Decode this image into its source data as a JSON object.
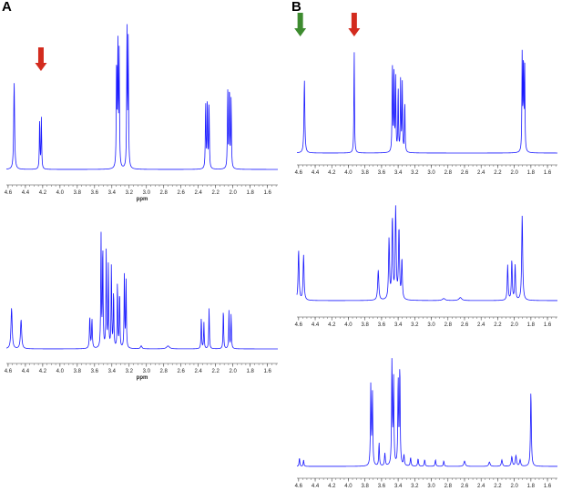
{
  "figure": {
    "panels": [
      {
        "letter": "A"
      },
      {
        "letter": "B"
      }
    ],
    "spectrum_color": "#1a1aff",
    "axis_color": "#444444",
    "arrows": [
      {
        "panel": "A",
        "x": 4.22,
        "color": "#d32b1e",
        "name": "red-arrow-icon"
      },
      {
        "panel": "B",
        "x": 4.58,
        "color": "#3d8b2f",
        "name": "green-arrow-icon"
      },
      {
        "panel": "B",
        "x": 3.93,
        "color": "#d32b1e",
        "name": "red-arrow-icon"
      }
    ]
  },
  "chart_data": [
    {
      "type": "line",
      "panel": "A",
      "xlabel": "ppm",
      "xlim": [
        4.62,
        1.48
      ],
      "ylim": [
        0,
        1
      ],
      "reversed_x": true,
      "ticks": [
        "4.6",
        "4.4",
        "4.2",
        "4.0",
        "3.8",
        "3.6",
        "3.4",
        "3.2",
        "3.0",
        "2.8",
        "2.6",
        "2.4",
        "2.2",
        "2.0",
        "1.8",
        "1.6"
      ],
      "peaks": [
        {
          "x": 4.53,
          "h": 0.62,
          "w": 0.006
        },
        {
          "x": 4.235,
          "h": 0.36,
          "w": 0.004
        },
        {
          "x": 4.215,
          "h": 0.36,
          "w": 0.004
        },
        {
          "x": 3.345,
          "h": 0.78,
          "w": 0.004
        },
        {
          "x": 3.33,
          "h": 0.88,
          "w": 0.004
        },
        {
          "x": 3.315,
          "h": 0.8,
          "w": 0.004
        },
        {
          "x": 3.225,
          "h": 0.98,
          "w": 0.004
        },
        {
          "x": 3.21,
          "h": 0.9,
          "w": 0.004
        },
        {
          "x": 2.315,
          "h": 0.48,
          "w": 0.004
        },
        {
          "x": 2.295,
          "h": 0.5,
          "w": 0.004
        },
        {
          "x": 2.275,
          "h": 0.44,
          "w": 0.004
        },
        {
          "x": 2.06,
          "h": 0.56,
          "w": 0.004
        },
        {
          "x": 2.04,
          "h": 0.6,
          "w": 0.004
        },
        {
          "x": 2.02,
          "h": 0.5,
          "w": 0.004
        }
      ]
    },
    {
      "type": "line",
      "panel": "A",
      "xlabel": "ppm",
      "xlim": [
        4.62,
        1.48
      ],
      "ylim": [
        0,
        1
      ],
      "reversed_x": true,
      "ticks": [
        "4.6",
        "4.4",
        "4.2",
        "4.0",
        "3.8",
        "3.6",
        "3.4",
        "3.2",
        "3.0",
        "2.8",
        "2.6",
        "2.4",
        "2.2",
        "2.0",
        "1.8",
        "1.6"
      ],
      "peaks": [
        {
          "x": 4.56,
          "h": 0.28,
          "w": 0.008
        },
        {
          "x": 4.45,
          "h": 0.2,
          "w": 0.008
        },
        {
          "x": 3.655,
          "h": 0.22,
          "w": 0.005
        },
        {
          "x": 3.63,
          "h": 0.2,
          "w": 0.005
        },
        {
          "x": 3.525,
          "h": 0.78,
          "w": 0.004
        },
        {
          "x": 3.505,
          "h": 0.72,
          "w": 0.004
        },
        {
          "x": 3.465,
          "h": 0.66,
          "w": 0.004
        },
        {
          "x": 3.44,
          "h": 0.58,
          "w": 0.004
        },
        {
          "x": 3.405,
          "h": 0.58,
          "w": 0.004
        },
        {
          "x": 3.38,
          "h": 0.4,
          "w": 0.004
        },
        {
          "x": 3.335,
          "h": 0.46,
          "w": 0.004
        },
        {
          "x": 3.31,
          "h": 0.4,
          "w": 0.004
        },
        {
          "x": 3.255,
          "h": 0.52,
          "w": 0.004
        },
        {
          "x": 3.235,
          "h": 0.46,
          "w": 0.004
        },
        {
          "x": 3.06,
          "h": 0.02,
          "w": 0.01
        },
        {
          "x": 2.75,
          "h": 0.02,
          "w": 0.02
        },
        {
          "x": 2.365,
          "h": 0.22,
          "w": 0.004
        },
        {
          "x": 2.335,
          "h": 0.18,
          "w": 0.004
        },
        {
          "x": 2.275,
          "h": 0.28,
          "w": 0.004
        },
        {
          "x": 2.11,
          "h": 0.28,
          "w": 0.004
        },
        {
          "x": 2.045,
          "h": 0.26,
          "w": 0.004
        },
        {
          "x": 2.02,
          "h": 0.24,
          "w": 0.004
        }
      ]
    },
    {
      "type": "line",
      "panel": "B",
      "xlabel": "",
      "xlim": [
        4.62,
        1.48
      ],
      "ylim": [
        0,
        1
      ],
      "reversed_x": true,
      "ticks": [
        "4.6",
        "4.4",
        "4.2",
        "4.0",
        "3.8",
        "3.6",
        "3.4",
        "3.2",
        "3.0",
        "2.8",
        "2.6",
        "2.4",
        "2.2",
        "2.0",
        "1.8",
        "1.6"
      ],
      "peaks": [
        {
          "x": 4.53,
          "h": 0.7,
          "w": 0.006
        },
        {
          "x": 3.93,
          "h": 1.0,
          "w": 0.004
        },
        {
          "x": 3.47,
          "h": 0.88,
          "w": 0.004
        },
        {
          "x": 3.45,
          "h": 0.8,
          "w": 0.004
        },
        {
          "x": 3.43,
          "h": 0.7,
          "w": 0.004
        },
        {
          "x": 3.4,
          "h": 0.62,
          "w": 0.004
        },
        {
          "x": 3.37,
          "h": 0.72,
          "w": 0.004
        },
        {
          "x": 3.35,
          "h": 0.65,
          "w": 0.004
        },
        {
          "x": 3.32,
          "h": 0.5,
          "w": 0.004
        },
        {
          "x": 1.905,
          "h": 0.94,
          "w": 0.004
        },
        {
          "x": 1.89,
          "h": 0.9,
          "w": 0.004
        },
        {
          "x": 1.875,
          "h": 0.82,
          "w": 0.004
        }
      ]
    },
    {
      "type": "line",
      "panel": "B",
      "xlabel": "",
      "xlim": [
        4.62,
        1.48
      ],
      "ylim": [
        0,
        1
      ],
      "reversed_x": true,
      "ticks": [
        "4.6",
        "4.4",
        "4.2",
        "4.0",
        "3.8",
        "3.6",
        "3.4",
        "3.2",
        "3.0",
        "2.8",
        "2.6",
        "2.4",
        "2.2",
        "2.0",
        "1.8",
        "1.6"
      ],
      "peaks": [
        {
          "x": 4.6,
          "h": 0.5,
          "w": 0.007
        },
        {
          "x": 4.54,
          "h": 0.45,
          "w": 0.007
        },
        {
          "x": 3.64,
          "h": 0.3,
          "w": 0.008
        },
        {
          "x": 3.51,
          "h": 0.6,
          "w": 0.007
        },
        {
          "x": 3.47,
          "h": 0.8,
          "w": 0.007
        },
        {
          "x": 3.43,
          "h": 0.9,
          "w": 0.007
        },
        {
          "x": 3.39,
          "h": 0.7,
          "w": 0.007
        },
        {
          "x": 3.355,
          "h": 0.4,
          "w": 0.006
        },
        {
          "x": 2.85,
          "h": 0.02,
          "w": 0.02
        },
        {
          "x": 2.65,
          "h": 0.03,
          "w": 0.02
        },
        {
          "x": 2.08,
          "h": 0.35,
          "w": 0.006
        },
        {
          "x": 2.03,
          "h": 0.4,
          "w": 0.006
        },
        {
          "x": 1.99,
          "h": 0.35,
          "w": 0.006
        },
        {
          "x": 1.905,
          "h": 0.85,
          "w": 0.007
        }
      ]
    },
    {
      "type": "line",
      "panel": "B",
      "xlabel": "",
      "xlim": [
        4.62,
        1.48
      ],
      "ylim": [
        0,
        1
      ],
      "reversed_x": true,
      "ticks": [
        "4.6",
        "4.4",
        "4.2",
        "4.0",
        "3.8",
        "3.6",
        "3.4",
        "3.2",
        "3.0",
        "2.8",
        "2.6",
        "2.4",
        "2.2",
        "2.0",
        "1.8",
        "1.6"
      ],
      "peaks": [
        {
          "x": 4.59,
          "h": 0.08,
          "w": 0.005
        },
        {
          "x": 4.54,
          "h": 0.06,
          "w": 0.005
        },
        {
          "x": 3.73,
          "h": 0.75,
          "w": 0.005
        },
        {
          "x": 3.71,
          "h": 0.68,
          "w": 0.005
        },
        {
          "x": 3.63,
          "h": 0.22,
          "w": 0.005
        },
        {
          "x": 3.56,
          "h": 0.12,
          "w": 0.006
        },
        {
          "x": 3.475,
          "h": 0.98,
          "w": 0.005
        },
        {
          "x": 3.455,
          "h": 0.8,
          "w": 0.005
        },
        {
          "x": 3.4,
          "h": 0.8,
          "w": 0.005
        },
        {
          "x": 3.38,
          "h": 0.92,
          "w": 0.005
        },
        {
          "x": 3.33,
          "h": 0.1,
          "w": 0.006
        },
        {
          "x": 3.25,
          "h": 0.08,
          "w": 0.006
        },
        {
          "x": 3.16,
          "h": 0.07,
          "w": 0.006
        },
        {
          "x": 3.08,
          "h": 0.06,
          "w": 0.006
        },
        {
          "x": 2.95,
          "h": 0.06,
          "w": 0.006
        },
        {
          "x": 2.85,
          "h": 0.05,
          "w": 0.006
        },
        {
          "x": 2.6,
          "h": 0.05,
          "w": 0.01
        },
        {
          "x": 2.3,
          "h": 0.04,
          "w": 0.01
        },
        {
          "x": 2.15,
          "h": 0.06,
          "w": 0.008
        },
        {
          "x": 2.03,
          "h": 0.09,
          "w": 0.008
        },
        {
          "x": 1.98,
          "h": 0.1,
          "w": 0.008
        },
        {
          "x": 1.93,
          "h": 0.06,
          "w": 0.008
        },
        {
          "x": 1.8,
          "h": 0.7,
          "w": 0.006
        }
      ]
    }
  ]
}
